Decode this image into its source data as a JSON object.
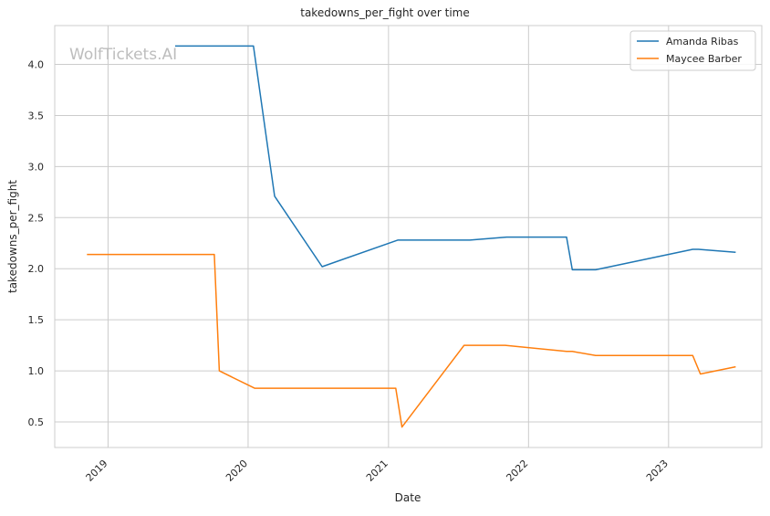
{
  "chart_data": {
    "type": "line",
    "title": "takedowns_per_fight over time",
    "xlabel": "Date",
    "ylabel": "takedowns_per_fight",
    "watermark": "WolfTickets.AI",
    "xlim": [
      "2018-08-15",
      "2023-09-01"
    ],
    "ylim": [
      0.25,
      4.38
    ],
    "x_ticks": [
      "2019-01-01",
      "2020-01-01",
      "2021-01-01",
      "2022-01-01",
      "2023-01-01"
    ],
    "x_tick_labels": [
      "2019",
      "2020",
      "2021",
      "2022",
      "2023"
    ],
    "y_ticks": [
      0.5,
      1.0,
      1.5,
      2.0,
      2.5,
      3.0,
      3.5,
      4.0
    ],
    "y_tick_labels": [
      "0.5",
      "1.0",
      "1.5",
      "2.0",
      "2.5",
      "3.0",
      "3.5",
      "4.0"
    ],
    "grid": true,
    "legend_position": "top-right",
    "series": [
      {
        "name": "Amanda Ribas",
        "color": "#1f77b4",
        "points": [
          [
            "2019-06-25",
            4.18
          ],
          [
            "2020-01-15",
            4.18
          ],
          [
            "2020-03-10",
            2.71
          ],
          [
            "2020-07-12",
            2.02
          ],
          [
            "2021-01-25",
            2.28
          ],
          [
            "2021-08-01",
            2.28
          ],
          [
            "2021-11-05",
            2.31
          ],
          [
            "2022-04-10",
            2.31
          ],
          [
            "2022-04-25",
            1.99
          ],
          [
            "2022-06-25",
            1.99
          ],
          [
            "2023-03-05",
            2.19
          ],
          [
            "2023-03-20",
            2.19
          ],
          [
            "2023-06-25",
            2.16
          ]
        ]
      },
      {
        "name": "Maycee Barber",
        "color": "#ff7f0e",
        "points": [
          [
            "2018-11-07",
            2.14
          ],
          [
            "2019-10-05",
            2.14
          ],
          [
            "2019-10-18",
            1.0
          ],
          [
            "2020-01-18",
            0.83
          ],
          [
            "2021-01-20",
            0.83
          ],
          [
            "2021-02-05",
            0.45
          ],
          [
            "2021-07-17",
            1.25
          ],
          [
            "2021-11-01",
            1.25
          ],
          [
            "2022-04-10",
            1.19
          ],
          [
            "2022-04-25",
            1.19
          ],
          [
            "2022-06-25",
            1.15
          ],
          [
            "2023-03-05",
            1.15
          ],
          [
            "2023-03-25",
            0.97
          ],
          [
            "2023-06-25",
            1.04
          ]
        ]
      }
    ]
  }
}
